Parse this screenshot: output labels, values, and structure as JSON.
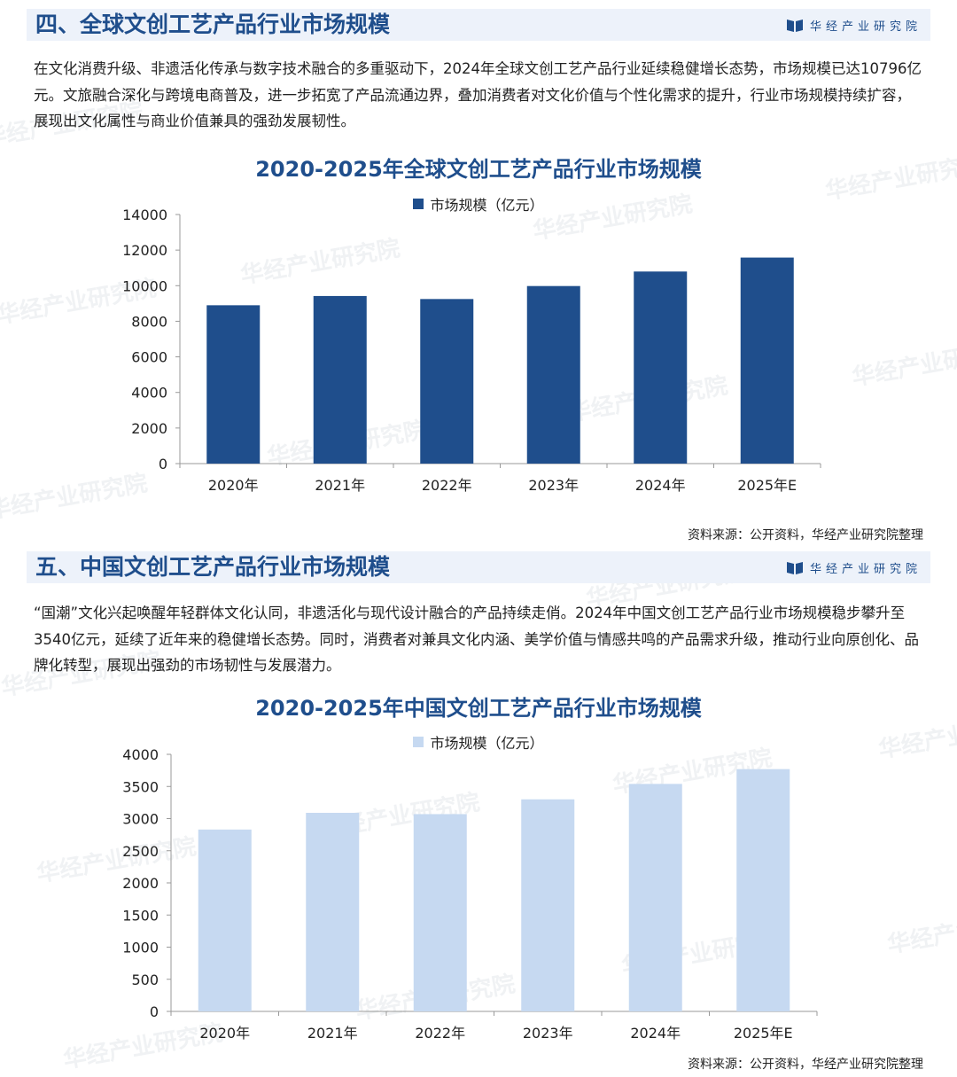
{
  "brand": "华经产业研究院",
  "watermark": "华经产业研究院",
  "section1": {
    "title": "四、全球文创工艺产品行业市场规模",
    "paragraph": "在文化消费升级、非遗活化传承与数字技术融合的多重驱动下，2024年全球文创工艺产品行业延续稳健增长态势，市场规模已达10796亿元。文旅融合深化与跨境电商普及，进一步拓宽了产品流通边界，叠加消费者对文化价值与个性化需求的提升，行业市场规模持续扩容，展现出文化属性与商业价值兼具的强劲发展韧性。",
    "source": "资料来源：公开资料，华经产业研究院整理"
  },
  "section2": {
    "title": "五、中国文创工艺产品行业市场规模",
    "paragraph": "“国潮”文化兴起唤醒年轻群体文化认同，非遗活化与现代设计融合的产品持续走俏。2024年中国文创工艺产品行业市场规模稳步攀升至3540亿元，延续了近年来的稳健增长态势。同时，消费者对兼具文化内涵、美学价值与情感共鸣的产品需求升级，推动行业向原创化、品牌化转型，展现出强劲的市场韧性与发展潜力。",
    "source": "资料来源：公开资料，华经产业研究院整理"
  },
  "chart_data": [
    {
      "type": "bar",
      "title": "2020-2025年全球文创工艺产品行业市场规模",
      "categories": [
        "2020年",
        "2021年",
        "2022年",
        "2023年",
        "2024年",
        "2025年E"
      ],
      "series": [
        {
          "name": "市场规模（亿元）",
          "values": [
            8900,
            9420,
            9250,
            9980,
            10796,
            11580
          ]
        }
      ],
      "ylim": [
        0,
        14000
      ],
      "yticks": [
        0,
        2000,
        4000,
        6000,
        8000,
        10000,
        12000,
        14000
      ],
      "color": "#1f4e8c",
      "legend": "top-center",
      "grid": false
    },
    {
      "type": "bar",
      "title": "2020-2025年中国文创工艺产品行业市场规模",
      "categories": [
        "2020年",
        "2021年",
        "2022年",
        "2023年",
        "2024年",
        "2025年E"
      ],
      "series": [
        {
          "name": "市场规模（亿元）",
          "values": [
            2830,
            3090,
            3070,
            3300,
            3540,
            3770
          ]
        }
      ],
      "ylim": [
        0,
        4000
      ],
      "yticks": [
        0,
        500,
        1000,
        1500,
        2000,
        2500,
        3000,
        3500,
        4000
      ],
      "color": "#c6d9f1",
      "legend": "top-center",
      "grid": false
    }
  ]
}
